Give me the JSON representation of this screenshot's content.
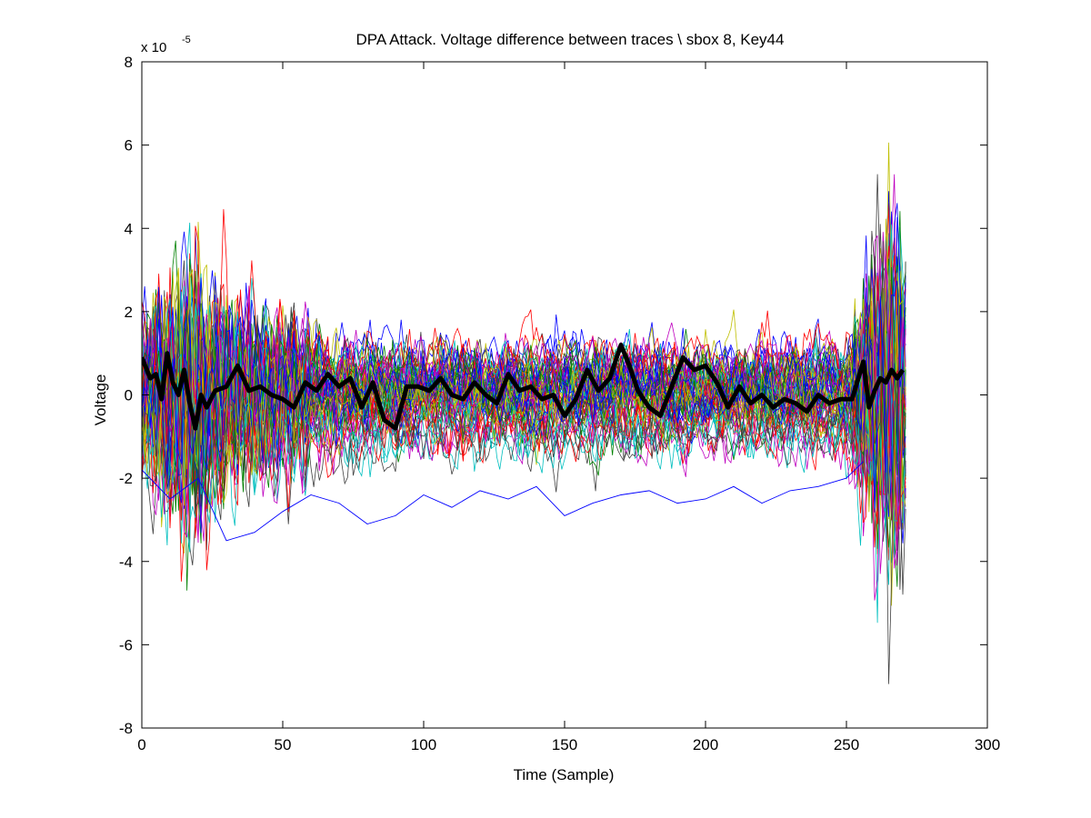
{
  "chart_data": {
    "type": "line",
    "title": "DPA Attack. Voltage difference between traces \\ sbox 8, Key44",
    "xlabel": "Time (Sample)",
    "ylabel": "Voltage",
    "y_exponent_base": "x 10",
    "y_exponent_power": "-5",
    "xlim": [
      0,
      300
    ],
    "ylim": [
      -8,
      8
    ],
    "x_ticks": [
      0,
      50,
      100,
      150,
      200,
      250,
      300
    ],
    "y_ticks": [
      -8,
      -6,
      -4,
      -2,
      0,
      2,
      4,
      6,
      8
    ],
    "x_tick_labels": [
      "0",
      "50",
      "100",
      "150",
      "200",
      "250",
      "300"
    ],
    "y_tick_labels": [
      "-8",
      "-6",
      "-4",
      "-2",
      "0",
      "2",
      "4",
      "6",
      "8"
    ],
    "grid": false,
    "legend": "none",
    "highlighted_series": {
      "color": "#000000",
      "x": [
        0,
        3,
        5,
        7,
        9,
        11,
        13,
        15,
        17,
        19,
        21,
        23,
        26,
        30,
        34,
        38,
        42,
        46,
        50,
        54,
        58,
        62,
        66,
        70,
        74,
        78,
        82,
        86,
        90,
        94,
        98,
        102,
        106,
        110,
        114,
        118,
        122,
        126,
        130,
        134,
        138,
        142,
        146,
        150,
        154,
        158,
        162,
        166,
        170,
        173,
        176,
        180,
        184,
        188,
        192,
        196,
        200,
        204,
        208,
        212,
        216,
        220,
        224,
        228,
        232,
        236,
        240,
        244,
        248,
        252,
        256,
        258,
        260,
        262,
        264,
        266,
        268,
        270
      ],
      "y": [
        0.9,
        0.4,
        0.5,
        -0.1,
        1.0,
        0.3,
        0.0,
        0.6,
        -0.2,
        -0.8,
        0.0,
        -0.3,
        0.1,
        0.2,
        0.7,
        0.1,
        0.2,
        0.0,
        -0.1,
        -0.3,
        0.3,
        0.1,
        0.5,
        0.2,
        0.4,
        -0.3,
        0.3,
        -0.6,
        -0.8,
        0.2,
        0.2,
        0.1,
        0.4,
        0.0,
        -0.1,
        0.3,
        0.0,
        -0.2,
        0.5,
        0.1,
        0.2,
        -0.1,
        0.0,
        -0.5,
        -0.1,
        0.6,
        0.1,
        0.4,
        1.2,
        0.7,
        0.1,
        -0.3,
        -0.5,
        0.2,
        0.9,
        0.6,
        0.7,
        0.3,
        -0.3,
        0.2,
        -0.2,
        0.0,
        -0.3,
        -0.1,
        -0.2,
        -0.4,
        0.0,
        -0.2,
        -0.1,
        -0.1,
        0.8,
        -0.3,
        0.1,
        0.4,
        0.3,
        0.6,
        0.4,
        0.6
      ]
    },
    "background_traces": {
      "count": 64,
      "x_range": [
        0,
        271
      ],
      "description_note": "",
      "colors": [
        "#0000ff",
        "#008000",
        "#ff0000",
        "#00bfbf",
        "#bf00bf",
        "#bfbf00",
        "#404040"
      ],
      "amplitude_envelope": {
        "x": [
          0,
          10,
          16,
          25,
          40,
          60,
          80,
          100,
          150,
          200,
          250,
          256,
          262,
          266,
          271
        ],
        "y": [
          1.2,
          2.4,
          3.0,
          2.0,
          1.5,
          1.2,
          1.1,
          1.0,
          1.0,
          1.0,
          1.0,
          2.0,
          3.5,
          4.0,
          2.5
        ]
      },
      "outlier_series": {
        "color": "#0000ff",
        "x": [
          0,
          10,
          20,
          30,
          40,
          50,
          60,
          70,
          80,
          90,
          100,
          110,
          120,
          130,
          140,
          150,
          160,
          170,
          180,
          190,
          200,
          210,
          220,
          230,
          240,
          250,
          256
        ],
        "y": [
          -1.8,
          -2.5,
          -2.0,
          -3.5,
          -3.3,
          -2.8,
          -2.4,
          -2.6,
          -3.1,
          -2.9,
          -2.4,
          -2.7,
          -2.3,
          -2.5,
          -2.2,
          -2.9,
          -2.6,
          -2.4,
          -2.3,
          -2.6,
          -2.5,
          -2.2,
          -2.6,
          -2.3,
          -2.2,
          -2.0,
          -1.6
        ]
      }
    }
  }
}
